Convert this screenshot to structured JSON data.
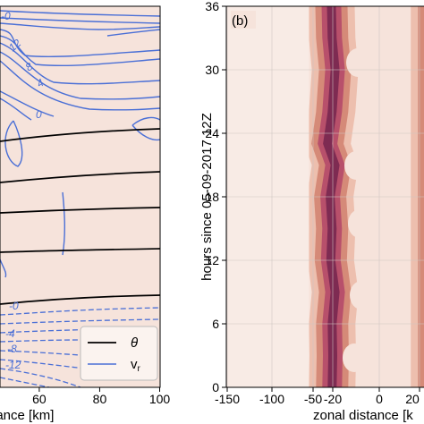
{
  "colors": {
    "background": "#f6e3db",
    "isotherm": "#000000",
    "radial_wind": "#4a6fd6",
    "shade_light": "#edbfae",
    "shade_mid": "#d58a78",
    "shade_dark": "#b8506b",
    "shade_peak": "#7e2b52"
  },
  "chart_data": [
    {
      "type": "contour",
      "panel": "a",
      "xlabel": "distance [km]",
      "x_ticks": [
        "60",
        "80",
        "100"
      ],
      "x_tick_values": [
        60,
        80,
        100
      ],
      "xlim": [
        47,
        100
      ],
      "legend": {
        "placement": "bottom-right",
        "entries": [
          "θ",
          "v_r"
        ]
      },
      "theta_lines_y_norm": [
        0.295,
        0.385,
        0.465,
        0.565,
        0.74
      ],
      "vr_contour_labels": [
        "-0",
        "12",
        "8",
        "4",
        "0",
        "-0",
        "-4",
        "-8",
        "-12"
      ],
      "vr_label_values": [
        0,
        12,
        8,
        4,
        0,
        0,
        -4,
        -8,
        -12
      ]
    },
    {
      "type": "heatmap",
      "panel": "b",
      "panel_label": "(b)",
      "xlabel": "zonal distance [k",
      "ylabel": "hours since 05-09-2017 12Z",
      "x_ticks": [
        "-150",
        "-100",
        "-50",
        "-20",
        "0",
        "20"
      ],
      "x_tick_values": [
        -150,
        -100,
        -50,
        -20,
        0,
        20
      ],
      "y_ticks": [
        "0",
        "6",
        "12",
        "18",
        "24",
        "30",
        "36"
      ],
      "y_tick_values": [
        0,
        6,
        12,
        18,
        24,
        30,
        36
      ],
      "ylim": [
        0,
        36
      ],
      "grid": true,
      "band_center_x_by_hour": [
        {
          "t": 0,
          "x": -21
        },
        {
          "t": 3,
          "x": -20
        },
        {
          "t": 6,
          "x": -21
        },
        {
          "t": 9,
          "x": -19
        },
        {
          "t": 12,
          "x": -23
        },
        {
          "t": 15,
          "x": -21
        },
        {
          "t": 18,
          "x": -24
        },
        {
          "t": 21,
          "x": -19
        },
        {
          "t": 23,
          "x": -28
        },
        {
          "t": 26,
          "x": -21
        },
        {
          "t": 30,
          "x": -19
        },
        {
          "t": 33,
          "x": -21
        },
        {
          "t": 36,
          "x": -22
        }
      ],
      "right_band_x": 21
    }
  ]
}
